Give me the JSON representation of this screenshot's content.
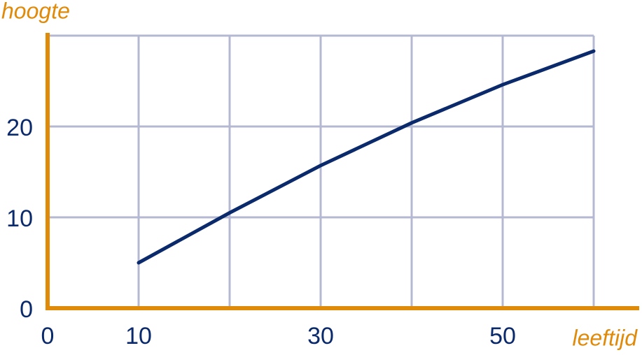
{
  "chart_data": {
    "type": "line",
    "y_label": "hoogte",
    "x_label": "leeftijd",
    "x": [
      10,
      20,
      30,
      40,
      50,
      60
    ],
    "series": [
      {
        "color": "#0a2a6b",
        "values": [
          5,
          10.5,
          15.7,
          20.4,
          24.6,
          28.3
        ]
      }
    ],
    "xlim": [
      0,
      65
    ],
    "ylim": [
      0,
      30
    ],
    "xticks": [
      0,
      10,
      30,
      50
    ],
    "yticks": [
      0,
      10,
      20
    ],
    "xgrid": [
      10,
      20,
      30,
      40,
      50,
      60
    ],
    "ygrid": [
      10,
      20,
      30
    ],
    "grid": true,
    "axis_color": "#e08a0a",
    "grid_color": "#b4b8d2"
  }
}
